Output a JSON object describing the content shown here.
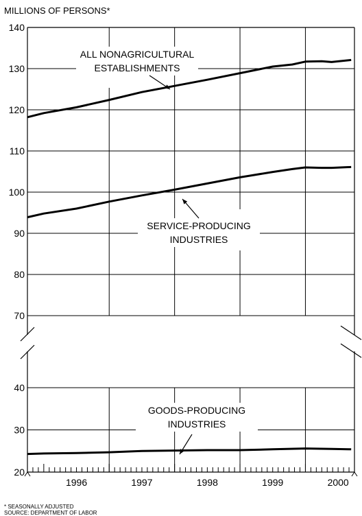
{
  "chart_data": {
    "type": "line",
    "ylabel": "MILLIONS OF PERSONS*",
    "ylim": [
      20,
      140
    ],
    "y_break": [
      47,
      67
    ],
    "upper_ticks": [
      70,
      80,
      90,
      100,
      110,
      120,
      130,
      140
    ],
    "lower_ticks": [
      20,
      30,
      40
    ],
    "x_tick_labels": [
      "1996",
      "1997",
      "1998",
      "1999",
      "2000"
    ],
    "x_range": [
      1995.75,
      2000.75
    ],
    "grid": true,
    "series": [
      {
        "name": "ALL NONAGRICULTURAL ESTABLISHMENTS",
        "label_lines": [
          "ALL NONAGRICULTURAL",
          "ESTABLISHMENTS"
        ],
        "x": [
          1995.75,
          1996.0,
          1996.5,
          1997.0,
          1997.5,
          1998.0,
          1998.5,
          1999.0,
          1999.5,
          1999.8,
          2000.0,
          2000.25,
          2000.4,
          2000.7
        ],
        "values": [
          118.2,
          119.2,
          120.6,
          122.4,
          124.3,
          125.8,
          127.3,
          128.9,
          130.5,
          131.0,
          131.7,
          131.8,
          131.6,
          132.1
        ]
      },
      {
        "name": "SERVICE-PRODUCING INDUSTRIES",
        "label_lines": [
          "SERVICE-PRODUCING",
          "INDUSTRIES"
        ],
        "x": [
          1995.75,
          1996.0,
          1996.5,
          1997.0,
          1997.5,
          1998.0,
          1998.5,
          1999.0,
          1999.5,
          1999.8,
          2000.0,
          2000.25,
          2000.4,
          2000.7
        ],
        "values": [
          93.9,
          94.8,
          96.0,
          97.7,
          99.2,
          100.6,
          102.1,
          103.6,
          104.9,
          105.6,
          106.0,
          105.9,
          105.9,
          106.1
        ]
      },
      {
        "name": "GOODS-PRODUCING INDUSTRIES",
        "label_lines": [
          "GOODS-PRODUCING",
          "INDUSTRIES"
        ],
        "x": [
          1995.75,
          1996.0,
          1996.5,
          1997.0,
          1997.5,
          1998.0,
          1998.5,
          1999.0,
          1999.5,
          2000.0,
          2000.4,
          2000.7
        ],
        "values": [
          24.3,
          24.4,
          24.5,
          24.7,
          25.0,
          25.1,
          25.2,
          25.2,
          25.4,
          25.6,
          25.5,
          25.4
        ]
      }
    ]
  },
  "footnotes": [
    "* SEASONALLY ADJUSTED",
    "SOURCE: DEPARTMENT OF LABOR"
  ]
}
